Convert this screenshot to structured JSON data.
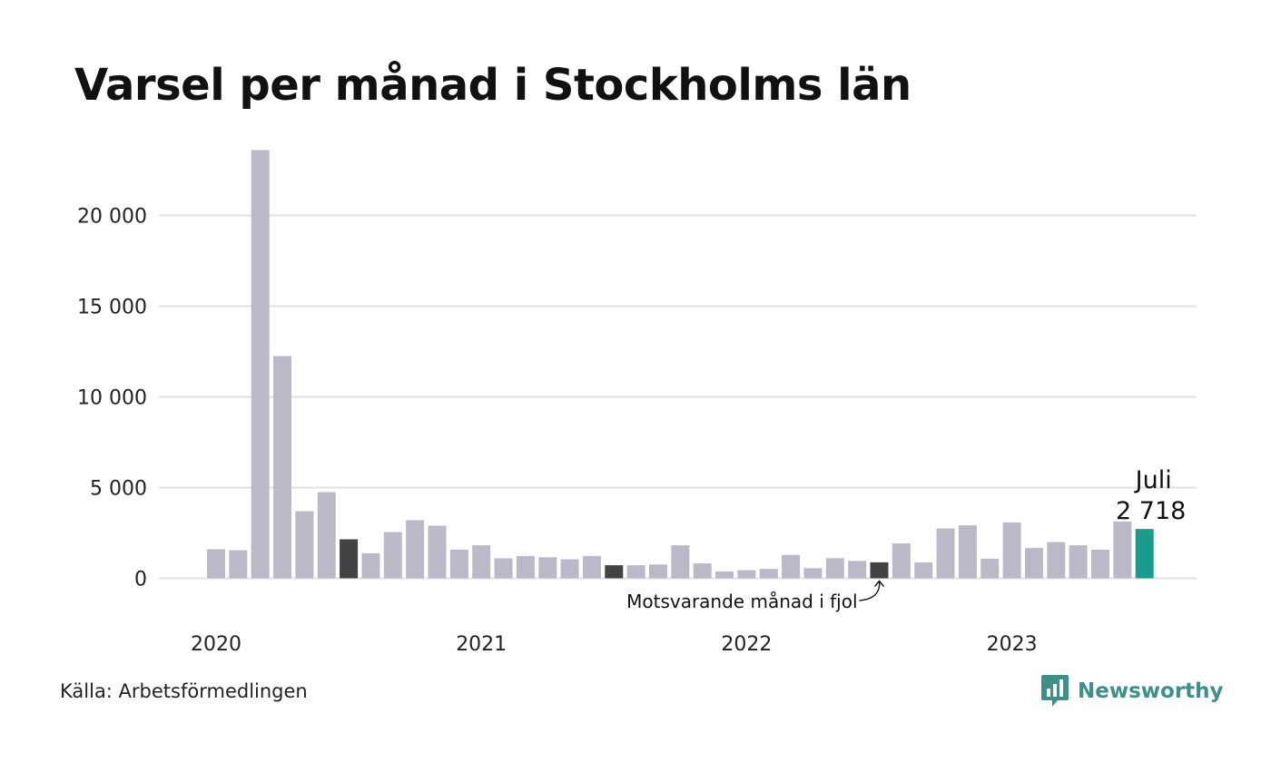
{
  "title": "Varsel per månad i Stockholms län",
  "source": "Källa: Arbetsförmedlingen",
  "brand": {
    "name": "Newsworthy",
    "icon": "bar-chart-speech-bubble-icon"
  },
  "colors": {
    "bar_default": "#bbb9c8",
    "bar_prior_year": "#434343",
    "bar_current": "#1a9b8c",
    "grid": "#e2e2e2",
    "brand": "#3d8f87"
  },
  "annotations": {
    "prior_year_note": "Motsvarande månad i fjol",
    "current_month": "Juli",
    "current_value": "2 718"
  },
  "chart_data": {
    "type": "bar",
    "title": "Varsel per månad i Stockholms län",
    "xlabel": "",
    "ylabel": "",
    "ylim": [
      0,
      24000
    ],
    "yticks": [
      0,
      5000,
      10000,
      15000,
      20000
    ],
    "ytick_labels": [
      "0",
      "5 000",
      "10 000",
      "15 000",
      "20 000"
    ],
    "xtick_labels": [
      {
        "label": "2020",
        "category": "2020-01"
      },
      {
        "label": "2021",
        "category": "2021-01"
      },
      {
        "label": "2022",
        "category": "2022-01"
      },
      {
        "label": "2023",
        "category": "2023-01"
      }
    ],
    "grid": true,
    "categories": [
      "2020-01",
      "2020-02",
      "2020-03",
      "2020-04",
      "2020-05",
      "2020-06",
      "2020-07",
      "2020-08",
      "2020-09",
      "2020-10",
      "2020-11",
      "2020-12",
      "2021-01",
      "2021-02",
      "2021-03",
      "2021-04",
      "2021-05",
      "2021-06",
      "2021-07",
      "2021-08",
      "2021-09",
      "2021-10",
      "2021-11",
      "2021-12",
      "2022-01",
      "2022-02",
      "2022-03",
      "2022-04",
      "2022-05",
      "2022-06",
      "2022-07",
      "2022-08",
      "2022-09",
      "2022-10",
      "2022-11",
      "2022-12",
      "2023-01",
      "2023-02",
      "2023-03",
      "2023-04",
      "2023-05",
      "2023-06",
      "2023-07"
    ],
    "values": [
      1600,
      1550,
      23600,
      12250,
      3700,
      4750,
      2150,
      1380,
      2550,
      3200,
      2900,
      1580,
      1820,
      1100,
      1230,
      1160,
      1050,
      1230,
      720,
      720,
      760,
      1820,
      820,
      380,
      450,
      520,
      1290,
      560,
      1110,
      960,
      880,
      1920,
      870,
      2750,
      2920,
      1080,
      3080,
      1670,
      2000,
      1820,
      1580,
      3130,
      2718
    ],
    "highlight_prior_year": [
      "2020-07",
      "2021-07",
      "2022-07"
    ],
    "highlight_current": "2023-07"
  }
}
